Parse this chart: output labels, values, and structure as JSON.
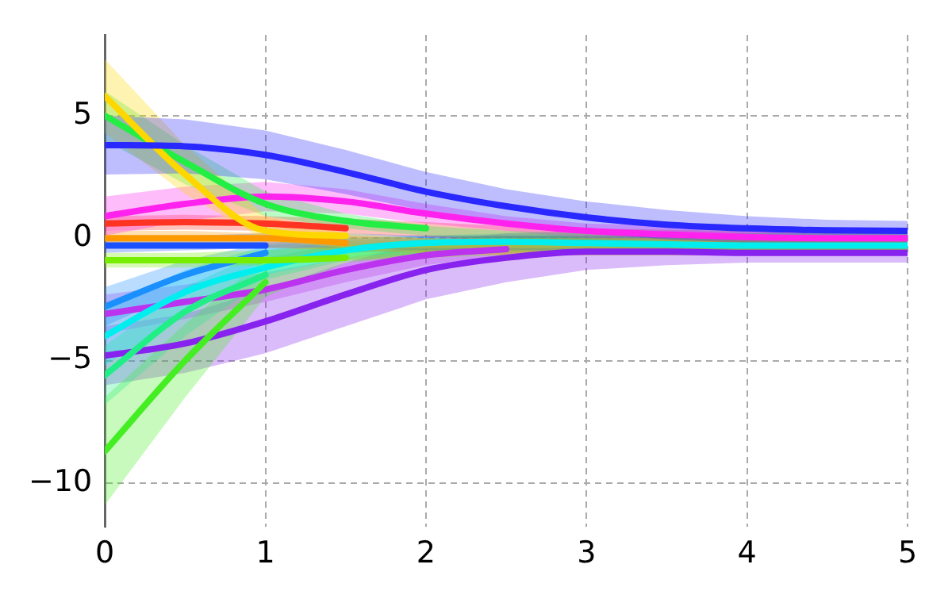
{
  "chart_data": {
    "type": "line",
    "x": [
      0,
      0.5,
      1,
      1.5,
      2,
      2.5,
      3,
      3.5,
      4,
      4.5,
      5
    ],
    "xlim": [
      0,
      5
    ],
    "xticks": [
      0,
      1,
      2,
      3,
      4,
      5
    ],
    "ylim": [
      -11.8,
      8.3
    ],
    "yticks": [
      -10,
      -5,
      0,
      5
    ],
    "grid": true,
    "legend": false,
    "marker": "none",
    "line_style": "solid",
    "series": [
      {
        "color": "#2828ff",
        "values": [
          3.8,
          3.75,
          3.4,
          2.7,
          1.9,
          1.3,
          0.85,
          0.55,
          0.4,
          0.32,
          0.3
        ],
        "lower": [
          2.6,
          2.65,
          2.4,
          1.8,
          1.1,
          0.6,
          0.2,
          -0.05,
          -0.2,
          -0.25,
          -0.3
        ],
        "upper": [
          5.0,
          4.85,
          4.4,
          3.6,
          2.7,
          2.0,
          1.5,
          1.15,
          0.9,
          0.75,
          0.7
        ]
      },
      {
        "color": "#ffd700",
        "values": [
          5.8,
          2.6,
          0.3,
          0.1,
          null,
          null,
          null,
          null,
          null,
          null,
          null
        ],
        "lower": [
          4.3,
          1.8,
          -0.1,
          -0.4,
          -0.4,
          -0.4,
          -0.4,
          -0.4,
          -0.4,
          -0.4,
          -0.4
        ],
        "upper": [
          7.3,
          3.8,
          0.9,
          0.2,
          0,
          0,
          0,
          0,
          0,
          0,
          0
        ]
      },
      {
        "color": "#22ee44",
        "values": [
          5.0,
          3.1,
          1.4,
          0.7,
          0.4,
          null,
          null,
          null,
          null,
          null,
          null
        ],
        "lower": [
          4.0,
          2.2,
          0.9,
          0.4,
          0.1,
          -0.1,
          -0.2,
          -0.2,
          -0.2,
          -0.2,
          -0.2
        ],
        "upper": [
          6.0,
          3.8,
          1.9,
          1.0,
          0.5,
          0.3,
          0.2,
          0.2,
          0.2,
          0.2,
          0.2
        ]
      },
      {
        "color": "#ff22ee",
        "values": [
          0.9,
          1.4,
          1.7,
          1.5,
          1.0,
          0.6,
          0.3,
          0.15,
          0.05,
          0,
          0
        ],
        "lower": [
          0.1,
          0.7,
          1.1,
          1.0,
          0.6,
          0.3,
          0,
          -0.1,
          -0.2,
          -0.2,
          -0.2
        ],
        "upper": [
          1.7,
          2.1,
          2.3,
          2.0,
          1.4,
          0.9,
          0.6,
          0.5,
          0.4,
          0.4,
          0.4
        ]
      },
      {
        "color": "#ff3322",
        "values": [
          0.6,
          0.65,
          0.6,
          0.4,
          null,
          null,
          null,
          null,
          null,
          null,
          null
        ],
        "lower": [
          0.3,
          0.35,
          0.3,
          0.2,
          0.05,
          -0.1,
          -0.2,
          -0.25,
          -0.3,
          -0.3,
          -0.3
        ],
        "upper": [
          0.9,
          0.95,
          0.9,
          0.8,
          0.65,
          0.5,
          0.4,
          0.35,
          0.3,
          0.3,
          0.3
        ]
      },
      {
        "color": "#ff9900",
        "values": [
          0,
          0,
          0,
          -0.2,
          null,
          null,
          null,
          null,
          null,
          null,
          null
        ],
        "lower": [
          -0.3,
          -0.3,
          -0.4,
          -0.5,
          -0.6,
          -0.7,
          -0.7,
          -0.7,
          -0.7,
          -0.7,
          -0.7
        ],
        "upper": [
          0.3,
          0.3,
          0.2,
          0.1,
          0,
          -0.1,
          -0.1,
          -0.1,
          -0.1,
          -0.1,
          -0.1
        ]
      },
      {
        "color": "#77ee00",
        "values": [
          -0.9,
          -0.9,
          -0.9,
          -0.8,
          null,
          null,
          null,
          null,
          null,
          null,
          null
        ],
        "lower": [
          -1.2,
          -1.2,
          -1.1,
          -0.9,
          -0.8,
          -0.7,
          -0.7,
          -0.7,
          -0.7,
          -0.7,
          -0.7
        ],
        "upper": [
          -0.6,
          -0.6,
          -0.5,
          -0.3,
          -0.2,
          -0.1,
          -0.1,
          -0.1,
          -0.1,
          -0.1,
          -0.1
        ]
      },
      {
        "color": "#1a50ff",
        "values": [
          -0.3,
          -0.3,
          -0.3,
          null,
          null,
          null,
          null,
          null,
          null,
          null,
          null
        ],
        "lower": [
          -0.6,
          -0.5,
          -0.4,
          -0.4,
          -0.5,
          -0.5,
          -0.5,
          -0.5,
          -0.5,
          -0.5,
          -0.5
        ],
        "upper": [
          0,
          0.1,
          0.2,
          0.2,
          0.1,
          0.1,
          0.1,
          0.1,
          0.1,
          0.1,
          0.1
        ]
      },
      {
        "color": "#1a90ff",
        "values": [
          -2.8,
          -1.5,
          -0.6,
          null,
          null,
          null,
          null,
          null,
          null,
          null,
          null
        ],
        "lower": [
          -3.6,
          -2.1,
          -1.0,
          -0.6,
          -0.5,
          -0.5,
          -0.5,
          -0.5,
          -0.5,
          -0.5,
          -0.5
        ],
        "upper": [
          -2.0,
          -0.9,
          -0.2,
          0,
          0.1,
          0.1,
          0.1,
          0.1,
          0.1,
          0.1,
          0.1
        ]
      },
      {
        "color": "#00eeee",
        "values": [
          -4.0,
          -2.2,
          -1.2,
          -0.5,
          -0.2,
          -0.15,
          -0.2,
          -0.25,
          -0.3,
          -0.3,
          -0.3
        ],
        "lower": [
          -5.2,
          -3.1,
          -1.5,
          -0.8,
          -0.5,
          -0.4,
          -0.4,
          -0.4,
          -0.4,
          -0.4,
          -0.4
        ],
        "upper": [
          -2.8,
          -1.3,
          -0.3,
          0,
          0.1,
          0.2,
          0.2,
          0.2,
          0.2,
          0.2,
          0.2
        ]
      },
      {
        "color": "#22ee88",
        "values": [
          -5.6,
          -3.0,
          -1.5,
          null,
          null,
          null,
          null,
          null,
          null,
          null,
          null
        ],
        "lower": [
          -6.8,
          -4.0,
          -1.7,
          -0.9,
          -0.6,
          -0.5,
          -0.5,
          -0.5,
          -0.5,
          -0.5,
          -0.5
        ],
        "upper": [
          -4.4,
          -2.0,
          -0.5,
          -0.1,
          0,
          0.1,
          0.1,
          0.1,
          0.1,
          0.1,
          0.1
        ]
      },
      {
        "color": "#44ee22",
        "values": [
          -8.7,
          -5.0,
          -1.8,
          null,
          null,
          null,
          null,
          null,
          null,
          null,
          null
        ],
        "lower": [
          -10.9,
          -6.5,
          -2.4,
          -1.0,
          -0.7,
          -0.6,
          -0.6,
          -0.6,
          -0.6,
          -0.6,
          -0.6
        ],
        "upper": [
          -6.5,
          -3.5,
          -0.8,
          -0.2,
          -0.1,
          0,
          0,
          0,
          0,
          0,
          0
        ]
      },
      {
        "color": "#bb33ee",
        "values": [
          -3.1,
          -2.6,
          -2.1,
          -1.3,
          -0.7,
          -0.45,
          null,
          null,
          null,
          null,
          null
        ],
        "lower": [
          -3.9,
          -3.3,
          -2.6,
          -1.8,
          -1.1,
          -0.7,
          -0.6,
          -0.6,
          -0.6,
          -0.6,
          -0.6
        ],
        "upper": [
          -2.3,
          -1.9,
          -1.4,
          -0.8,
          -0.3,
          -0.1,
          0,
          0,
          0,
          0,
          0
        ]
      },
      {
        "color": "#8822ee",
        "values": [
          -4.8,
          -4.3,
          -3.4,
          -2.3,
          -1.3,
          -0.8,
          -0.55,
          -0.55,
          -0.6,
          -0.6,
          -0.6
        ],
        "lower": [
          -6.0,
          -5.5,
          -4.7,
          -3.6,
          -2.5,
          -1.8,
          -1.3,
          -1.1,
          -1.0,
          -1.0,
          -1.0
        ],
        "upper": [
          -3.6,
          -3.1,
          -2.1,
          -1.0,
          -0.1,
          0.2,
          0.3,
          0.1,
          0,
          -0.2,
          -0.2
        ]
      }
    ]
  }
}
